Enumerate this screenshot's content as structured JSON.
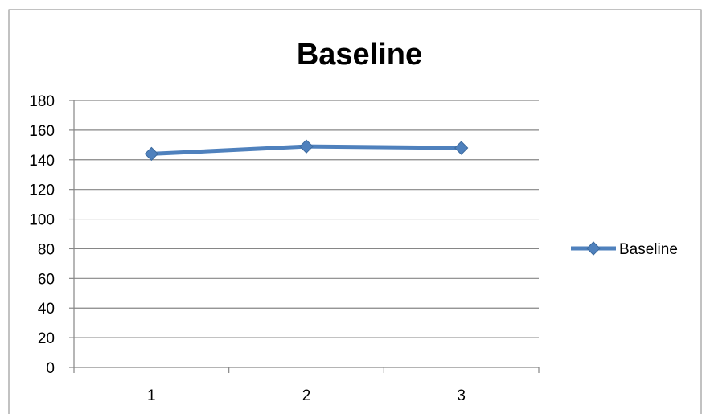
{
  "chart_data": {
    "type": "line",
    "title": "Baseline",
    "xlabel": "",
    "ylabel": "",
    "categories": [
      "1",
      "2",
      "3"
    ],
    "series": [
      {
        "name": "Baseline",
        "values": [
          144,
          149,
          148
        ],
        "color": "#4F81BD",
        "marker": "diamond"
      }
    ],
    "ylim": [
      0,
      180
    ],
    "y_ticks": [
      0,
      20,
      40,
      60,
      80,
      100,
      120,
      140,
      160,
      180
    ],
    "grid": true,
    "legend_position": "right"
  }
}
